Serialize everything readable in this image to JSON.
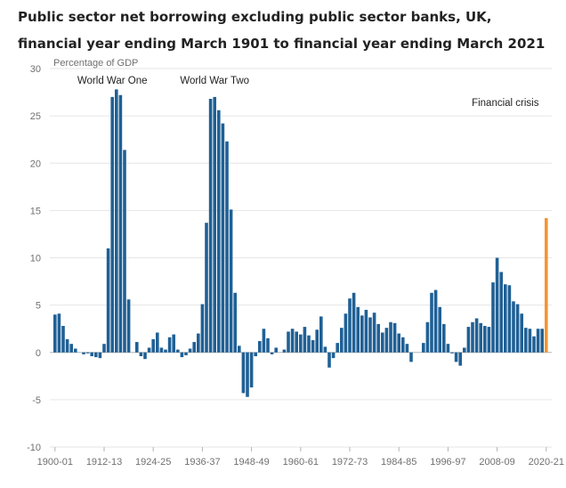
{
  "chart_data": {
    "type": "bar",
    "title": "Public sector net borrowing excluding public sector banks, UK, financial year ending March 1901 to financial year ending March 2021",
    "ylabel": "Percentage of GDP",
    "xlabel": "",
    "ylim": [
      -10,
      30
    ],
    "yticks": [
      -10,
      -5,
      0,
      5,
      10,
      15,
      20,
      25,
      30
    ],
    "xtick_labels": [
      "1900-01",
      "1912-13",
      "1924-25",
      "1936-37",
      "1948-49",
      "1960-61",
      "1972-73",
      "1984-85",
      "1996-97",
      "2008-09",
      "2020-21"
    ],
    "xtick_every": 12,
    "grid": true,
    "annotations": [
      {
        "text": "World War One",
        "category": "1914-15"
      },
      {
        "text": "World War Two",
        "category": "1939-40"
      },
      {
        "text": "Financial crisis",
        "category": "2010-11"
      }
    ],
    "colors": {
      "bar": "#206095",
      "highlight": "#F39431",
      "grid": "#E6E6E6",
      "axis": "#B3B3B3"
    },
    "highlight_category": "2020-21",
    "categories": [
      "1900-01",
      "1901-02",
      "1902-03",
      "1903-04",
      "1904-05",
      "1905-06",
      "1906-07",
      "1907-08",
      "1908-09",
      "1909-10",
      "1910-11",
      "1911-12",
      "1912-13",
      "1913-14",
      "1914-15",
      "1915-16",
      "1916-17",
      "1917-18",
      "1918-19",
      "1919-20",
      "1920-21",
      "1921-22",
      "1922-23",
      "1923-24",
      "1924-25",
      "1925-26",
      "1926-27",
      "1927-28",
      "1928-29",
      "1929-30",
      "1930-31",
      "1931-32",
      "1932-33",
      "1933-34",
      "1934-35",
      "1935-36",
      "1936-37",
      "1937-38",
      "1938-39",
      "1939-40",
      "1940-41",
      "1941-42",
      "1942-43",
      "1943-44",
      "1944-45",
      "1945-46",
      "1946-47",
      "1947-48",
      "1948-49",
      "1949-50",
      "1950-51",
      "1951-52",
      "1952-53",
      "1953-54",
      "1954-55",
      "1955-56",
      "1956-57",
      "1957-58",
      "1958-59",
      "1959-60",
      "1960-61",
      "1961-62",
      "1962-63",
      "1963-64",
      "1964-65",
      "1965-66",
      "1966-67",
      "1967-68",
      "1968-69",
      "1969-70",
      "1970-71",
      "1971-72",
      "1972-73",
      "1973-74",
      "1974-75",
      "1975-76",
      "1976-77",
      "1977-78",
      "1978-79",
      "1979-80",
      "1980-81",
      "1981-82",
      "1982-83",
      "1983-84",
      "1984-85",
      "1985-86",
      "1986-87",
      "1987-88",
      "1988-89",
      "1989-90",
      "1990-91",
      "1991-92",
      "1992-93",
      "1993-94",
      "1994-95",
      "1995-96",
      "1996-97",
      "1997-98",
      "1998-99",
      "1999-00",
      "2000-01",
      "2001-02",
      "2002-03",
      "2003-04",
      "2004-05",
      "2005-06",
      "2006-07",
      "2007-08",
      "2008-09",
      "2009-10",
      "2010-11",
      "2011-12",
      "2012-13",
      "2013-14",
      "2014-15",
      "2015-16",
      "2016-17",
      "2017-18",
      "2018-19",
      "2019-20",
      "2020-21"
    ],
    "values": [
      4.0,
      4.1,
      2.8,
      1.4,
      0.9,
      0.4,
      0.0,
      -0.2,
      -0.1,
      -0.4,
      -0.5,
      -0.6,
      0.9,
      11.0,
      27.0,
      27.8,
      27.2,
      21.4,
      5.6,
      0.0,
      1.1,
      -0.4,
      -0.7,
      0.5,
      1.4,
      2.1,
      0.5,
      0.3,
      1.6,
      1.9,
      0.3,
      -0.5,
      -0.3,
      0.4,
      1.1,
      2.0,
      5.1,
      13.7,
      26.8,
      27.0,
      25.6,
      24.2,
      22.3,
      15.1,
      6.3,
      0.7,
      -4.3,
      -4.7,
      -3.7,
      -0.4,
      1.2,
      2.5,
      1.5,
      -0.2,
      0.5,
      0.0,
      0.3,
      2.2,
      2.5,
      2.2,
      1.9,
      2.7,
      1.8,
      1.3,
      2.4,
      3.8,
      0.6,
      -1.6,
      -0.6,
      1.0,
      2.6,
      4.1,
      5.7,
      6.3,
      4.8,
      3.9,
      4.5,
      3.7,
      4.2,
      3.0,
      2.1,
      2.6,
      3.2,
      3.1,
      2.0,
      1.6,
      0.9,
      -1.0,
      0.0,
      0.0,
      1.0,
      3.2,
      6.3,
      6.6,
      4.8,
      3.0,
      0.9,
      -0.1,
      -1.0,
      -1.4,
      0.5,
      2.7,
      3.2,
      3.6,
      3.1,
      2.8,
      2.7,
      7.4,
      10.0,
      8.5,
      7.2,
      7.1,
      5.4,
      5.1,
      4.1,
      2.6,
      2.5,
      1.7,
      2.5,
      2.5,
      14.2
    ]
  }
}
